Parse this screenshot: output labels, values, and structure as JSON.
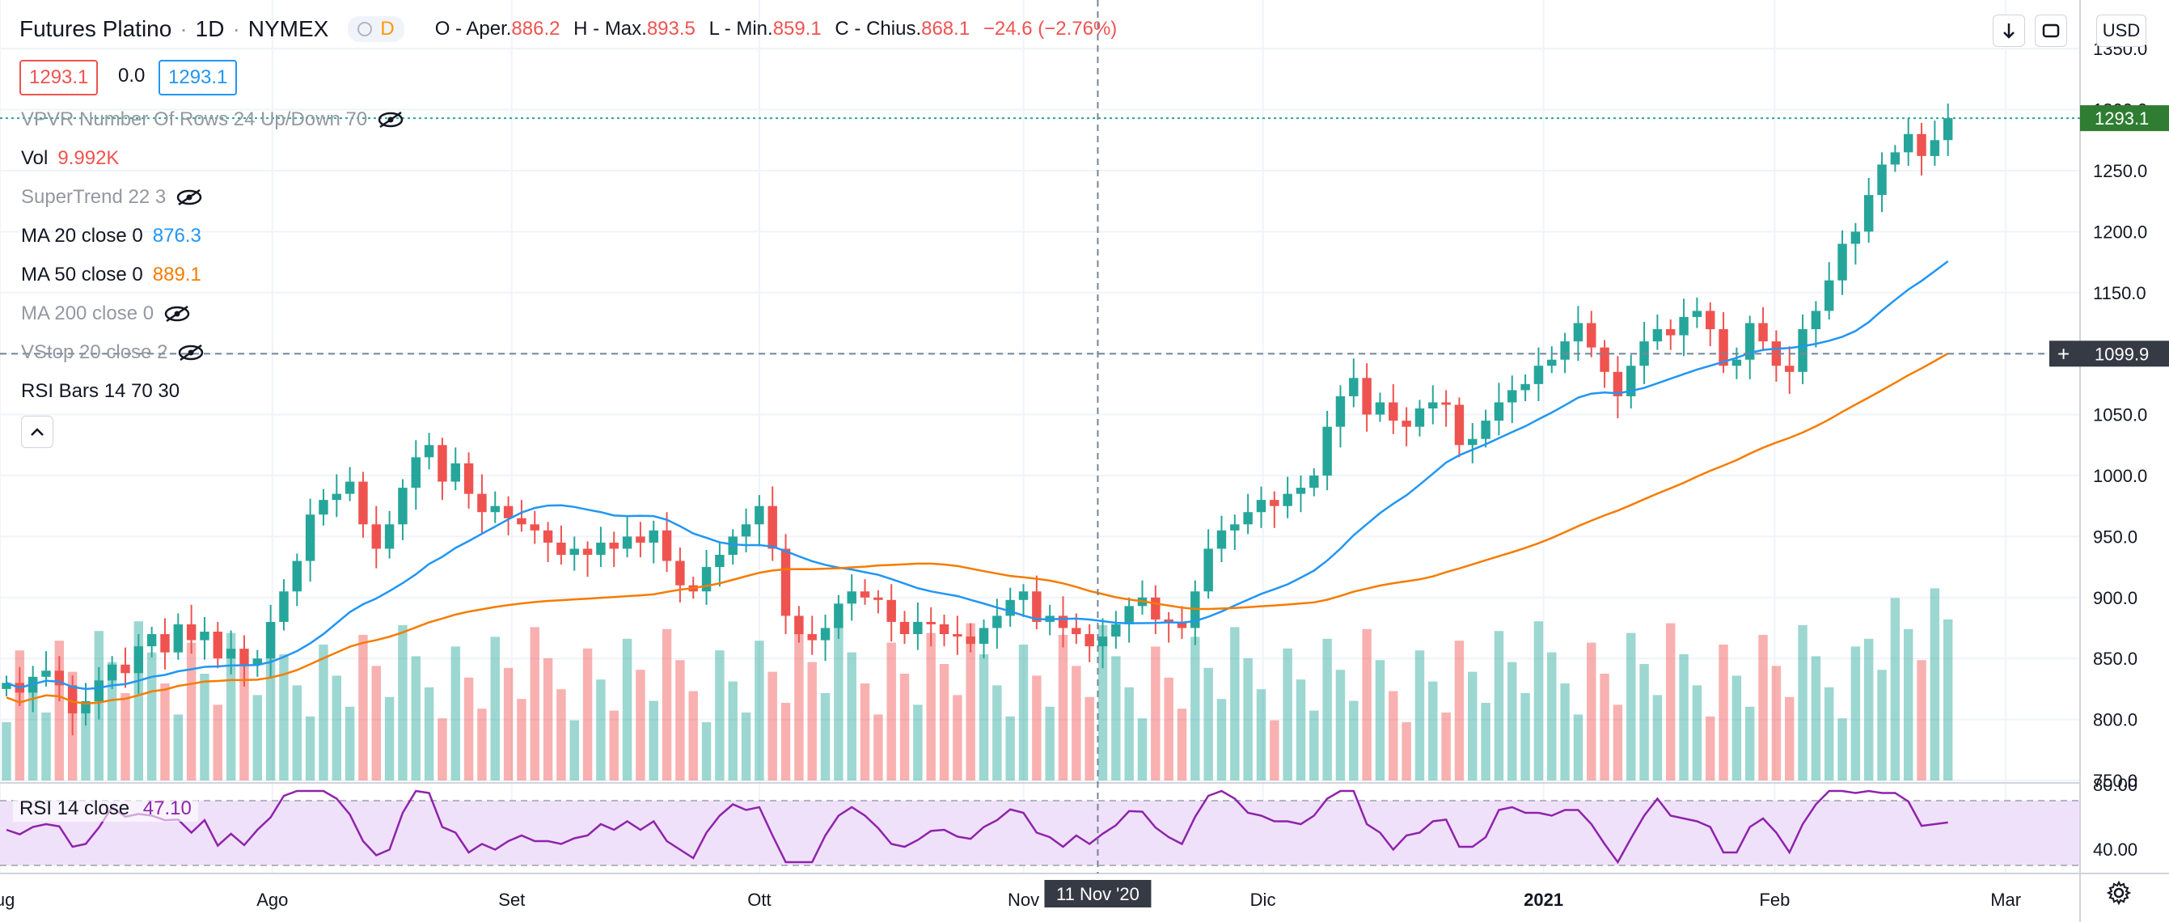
{
  "header": {
    "symbol": "Futures Platino",
    "interval": "1D",
    "exchange": "NYMEX",
    "badge": "D",
    "o_label": "O - Aper.",
    "o_value": "886.2",
    "h_label": "H - Max.",
    "h_value": "893.5",
    "l_label": "L - Min.",
    "l_value": "859.1",
    "c_label": "C - Chius.",
    "c_value": "868.1",
    "change": "−24.6 (−2.76%)",
    "currency": "USD"
  },
  "price_boxes": {
    "bid": "1293.1",
    "spread": "0.0",
    "ask": "1293.1"
  },
  "indicators": {
    "vpvr": "VPVR Number Of Rows 24 Up/Down 70",
    "vol_label": "Vol",
    "vol_value": "9.992K",
    "supertrend": "SuperTrend 22 3",
    "ma20_label": "MA 20 close 0",
    "ma20_value": "876.3",
    "ma50_label": "MA 50 close 0",
    "ma50_value": "889.1",
    "ma200": "MA 200 close 0",
    "vstop": "VStop 20 close 2",
    "rsibars": "RSI Bars 14 70 30",
    "rsi_label": "RSI 14 close",
    "rsi_value": "47.10"
  },
  "crosshair": {
    "date": "11 Nov '20",
    "price": "1099.9"
  },
  "last_price_label": "1293.1",
  "colors": {
    "up": "#26a69a",
    "down": "#ef5350",
    "ma20": "#2196f3",
    "ma50": "#f57c00",
    "rsi": "#8e24aa",
    "rsi_band": "#f0e1fb"
  },
  "chart_data": {
    "type": "candlestick",
    "title": "Futures Platino · 1D · NYMEX",
    "x_range": [
      "2020-07-01",
      "2021-03-10"
    ],
    "price_range": [
      750,
      1370
    ],
    "rsi_range": [
      25,
      80
    ],
    "y_ticks": [
      750,
      800,
      850,
      900,
      950,
      1000,
      1050,
      1100,
      1150,
      1200,
      1250,
      1300,
      1350
    ],
    "rsi_ticks": [
      40,
      80
    ],
    "x_labels": [
      {
        "label": "Lug",
        "date": "2020-07-01"
      },
      {
        "label": "Ago",
        "date": "2020-08-03"
      },
      {
        "label": "Set",
        "date": "2020-09-01"
      },
      {
        "label": "Ott",
        "date": "2020-10-01"
      },
      {
        "label": "Nov",
        "date": "2020-11-02"
      },
      {
        "label": "Dic",
        "date": "2020-12-01"
      },
      {
        "label": "2021",
        "date": "2021-01-04"
      },
      {
        "label": "Feb",
        "date": "2021-02-01"
      },
      {
        "label": "Mar",
        "date": "2021-03-01"
      }
    ],
    "ohlc_close": [
      830,
      822,
      835,
      840,
      828,
      805,
      815,
      832,
      845,
      838,
      860,
      870,
      855,
      878,
      865,
      872,
      850,
      858,
      845,
      850,
      880,
      905,
      930,
      968,
      980,
      985,
      995,
      960,
      940,
      960,
      990,
      1015,
      1025,
      995,
      1010,
      985,
      970,
      975,
      965,
      960,
      955,
      945,
      935,
      940,
      935,
      945,
      940,
      950,
      945,
      955,
      930,
      910,
      905,
      925,
      935,
      950,
      960,
      975,
      940,
      885,
      870,
      865,
      875,
      895,
      905,
      900,
      898,
      880,
      870,
      880,
      878,
      870,
      868,
      862,
      875,
      885,
      898,
      905,
      880,
      885,
      875,
      870,
      860,
      868,
      878,
      893,
      900,
      882,
      880,
      875,
      905,
      940,
      955,
      960,
      970,
      980,
      975,
      985,
      990,
      1000,
      1040,
      1065,
      1080,
      1050,
      1060,
      1045,
      1040,
      1055,
      1060,
      1058,
      1025,
      1030,
      1045,
      1060,
      1070,
      1075,
      1090,
      1095,
      1110,
      1125,
      1105,
      1085,
      1065,
      1090,
      1110,
      1120,
      1115,
      1130,
      1135,
      1120,
      1090,
      1095,
      1125,
      1110,
      1090,
      1085,
      1120,
      1135,
      1160,
      1190,
      1200,
      1230,
      1255,
      1265,
      1280,
      1262,
      1275,
      1293
    ],
    "volume_range": [
      0,
      160000
    ],
    "rsi_value": 47.1,
    "ma_periods": [
      20,
      50
    ]
  }
}
